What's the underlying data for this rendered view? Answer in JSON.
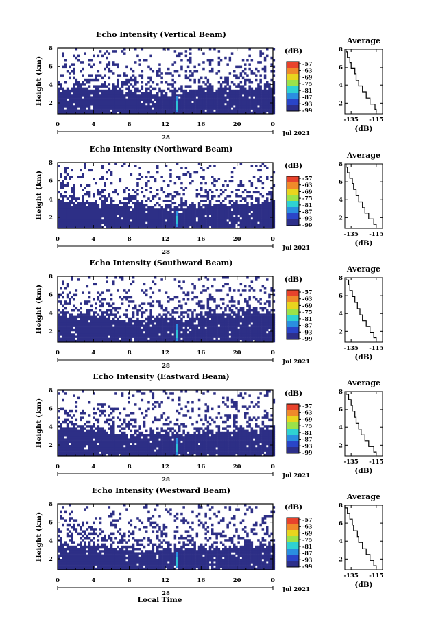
{
  "common": {
    "x_tick_labels": [
      "0",
      "4",
      "8",
      "12",
      "16",
      "20",
      "0"
    ],
    "day_label": "28",
    "date_label": "Jul 2021",
    "y_label": "Height (km)",
    "y_tick_labels": [
      "2",
      "4",
      "6",
      "8"
    ],
    "colorbar_unit": "(dB)",
    "colorbar_labels": [
      "-57",
      "-63",
      "-69",
      "-75",
      "-81",
      "-87",
      "-93",
      "-99"
    ],
    "colorbar_colors": [
      "#e8432c",
      "#f08a2a",
      "#e9d51e",
      "#9be24a",
      "#2fd2d2",
      "#2a8fe0",
      "#2a45c8",
      "#2d2f8a"
    ],
    "profile_title": "Average",
    "profile_x_ticks": [
      "-135",
      "-115"
    ],
    "profile_xlabel": "(dB)",
    "profile_y_ticks": [
      "2",
      "4",
      "6",
      "8"
    ],
    "bottom_xlabel": "Local Time"
  },
  "chart_data": [
    {
      "type": "heatmap",
      "title": "Echo Intensity (Vertical Beam)",
      "xlabel": "Local Time",
      "ylabel": "Height (km)",
      "xlim": [
        0,
        24
      ],
      "ylim": [
        0.8,
        8
      ],
      "clim": [
        -99,
        -57
      ],
      "cloud_top_km": [
        [
          0,
          3.8
        ],
        [
          4,
          3.7
        ],
        [
          8,
          3.3
        ],
        [
          12,
          3.1
        ],
        [
          16,
          3.5
        ],
        [
          20,
          3.6
        ],
        [
          24,
          3.9
        ]
      ],
      "spike_local_time": 13.2,
      "profile": {
        "title": "Average",
        "xlim": [
          -140,
          -110
        ],
        "ylim": [
          0.8,
          8
        ],
        "x": [
          -139,
          -138,
          -136,
          -135,
          -132,
          -131,
          -129,
          -126,
          -123,
          -120,
          -116,
          -115
        ],
        "y": [
          8.0,
          7.4,
          6.8,
          6.2,
          5.6,
          4.9,
          4.2,
          3.6,
          2.9,
          2.2,
          1.6,
          1.0
        ]
      }
    },
    {
      "type": "heatmap",
      "title": "Echo Intensity (Northward Beam)",
      "xlabel": "Local Time",
      "ylabel": "Height (km)",
      "xlim": [
        0,
        24
      ],
      "ylim": [
        0.8,
        8
      ],
      "clim": [
        -99,
        -57
      ],
      "cloud_top_km": [
        [
          0,
          3.9
        ],
        [
          4,
          3.6
        ],
        [
          8,
          3.2
        ],
        [
          12,
          3.2
        ],
        [
          16,
          3.4
        ],
        [
          20,
          3.5
        ],
        [
          24,
          3.7
        ]
      ],
      "spike_local_time": 13.2,
      "profile": {
        "title": "Average",
        "xlim": [
          -140,
          -110
        ],
        "ylim": [
          0.8,
          8
        ],
        "x": [
          -139,
          -138,
          -136,
          -134,
          -133,
          -131,
          -129,
          -126,
          -124,
          -121,
          -117,
          -115
        ],
        "y": [
          8.0,
          7.3,
          6.7,
          6.1,
          5.5,
          4.8,
          4.1,
          3.4,
          2.8,
          2.2,
          1.5,
          1.0
        ]
      }
    },
    {
      "type": "heatmap",
      "title": "Echo Intensity (Southward Beam)",
      "xlabel": "Local Time",
      "ylabel": "Height (km)",
      "xlim": [
        0,
        24
      ],
      "ylim": [
        0.8,
        8
      ],
      "clim": [
        -99,
        -57
      ],
      "cloud_top_km": [
        [
          0,
          4.0
        ],
        [
          4,
          3.8
        ],
        [
          8,
          3.2
        ],
        [
          12,
          3.3
        ],
        [
          16,
          3.8
        ],
        [
          20,
          4.1
        ],
        [
          24,
          4.2
        ]
      ],
      "spike_local_time": 13.2,
      "profile": {
        "title": "Average",
        "xlim": [
          -140,
          -110
        ],
        "ylim": [
          0.8,
          8
        ],
        "x": [
          -139,
          -137,
          -136,
          -134,
          -132,
          -130,
          -128,
          -126,
          -123,
          -120,
          -117,
          -115
        ],
        "y": [
          8.0,
          7.5,
          6.9,
          6.2,
          5.6,
          4.9,
          4.2,
          3.5,
          2.9,
          2.2,
          1.6,
          1.0
        ]
      }
    },
    {
      "type": "heatmap",
      "title": "Echo Intensity (Eastward Beam)",
      "xlabel": "Local Time",
      "ylabel": "Height (km)",
      "xlim": [
        0,
        24
      ],
      "ylim": [
        0.8,
        8
      ],
      "clim": [
        -99,
        -57
      ],
      "cloud_top_km": [
        [
          0,
          3.9
        ],
        [
          4,
          3.7
        ],
        [
          8,
          3.1
        ],
        [
          12,
          3.2
        ],
        [
          16,
          3.4
        ],
        [
          20,
          3.6
        ],
        [
          24,
          3.8
        ]
      ],
      "spike_local_time": 13.2,
      "profile": {
        "title": "Average",
        "xlim": [
          -140,
          -110
        ],
        "ylim": [
          0.8,
          8
        ],
        "x": [
          -139,
          -137,
          -135,
          -134,
          -132,
          -131,
          -129,
          -127,
          -124,
          -121,
          -117,
          -115
        ],
        "y": [
          8.0,
          7.4,
          6.8,
          6.1,
          5.5,
          4.8,
          4.1,
          3.5,
          2.8,
          2.2,
          1.5,
          1.0
        ]
      }
    },
    {
      "type": "heatmap",
      "title": "Echo Intensity (Westward Beam)",
      "xlabel": "Local Time",
      "ylabel": "Height (km)",
      "xlim": [
        0,
        24
      ],
      "ylim": [
        0.8,
        8
      ],
      "clim": [
        -99,
        -57
      ],
      "cloud_top_km": [
        [
          0,
          3.8
        ],
        [
          4,
          3.5
        ],
        [
          8,
          3.1
        ],
        [
          12,
          3.1
        ],
        [
          16,
          3.3
        ],
        [
          20,
          3.4
        ],
        [
          24,
          3.6
        ]
      ],
      "spike_local_time": 13.2,
      "profile": {
        "title": "Average",
        "xlim": [
          -140,
          -110
        ],
        "ylim": [
          0.8,
          8
        ],
        "x": [
          -140,
          -138,
          -136,
          -134,
          -133,
          -130,
          -129,
          -126,
          -123,
          -120,
          -117,
          -115
        ],
        "y": [
          8.0,
          7.4,
          6.8,
          6.1,
          5.5,
          4.8,
          4.2,
          3.5,
          2.8,
          2.2,
          1.5,
          1.0
        ]
      }
    }
  ]
}
